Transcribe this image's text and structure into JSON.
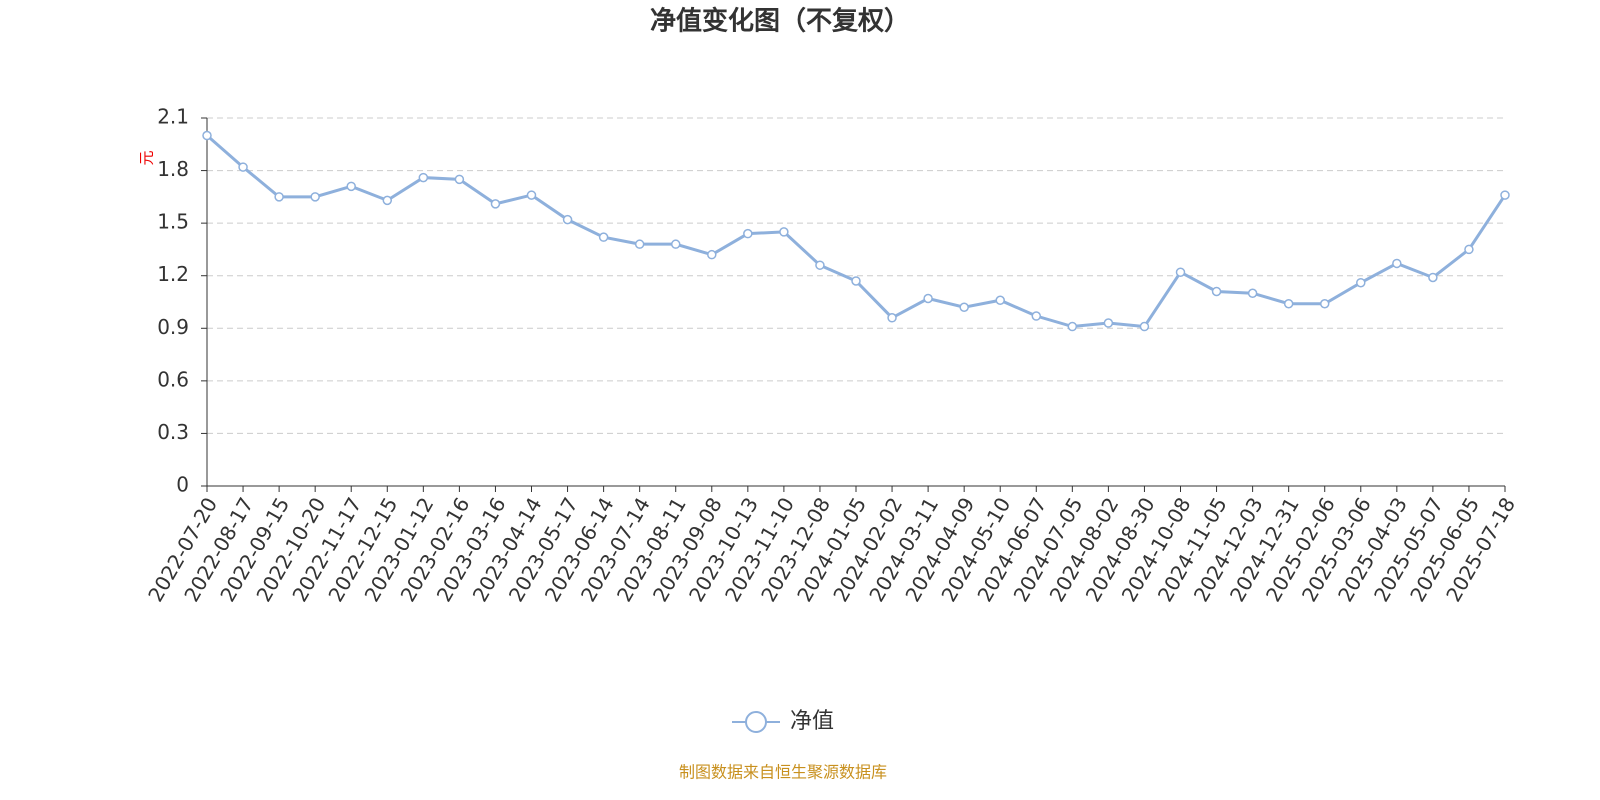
{
  "chart_data": {
    "type": "line",
    "title": "净值变化图（不复权）",
    "y_label": "元",
    "source": "制图数据来自恒生聚源数据库",
    "categories": [
      "2022-07-20",
      "2022-08-17",
      "2022-09-15",
      "2022-10-20",
      "2022-11-17",
      "2022-12-15",
      "2023-01-12",
      "2023-02-16",
      "2023-03-16",
      "2023-04-14",
      "2023-05-17",
      "2023-06-14",
      "2023-07-14",
      "2023-08-11",
      "2023-09-08",
      "2023-10-13",
      "2023-11-10",
      "2023-12-08",
      "2024-01-05",
      "2024-02-02",
      "2024-03-11",
      "2024-04-09",
      "2024-05-10",
      "2024-06-07",
      "2024-07-05",
      "2024-08-02",
      "2024-08-30",
      "2024-10-08",
      "2024-11-05",
      "2024-12-03",
      "2024-12-31",
      "2025-02-06",
      "2025-03-06",
      "2025-04-03",
      "2025-05-07",
      "2025-06-05",
      "2025-07-18"
    ],
    "series": [
      {
        "name": "净值",
        "color": "#8eb0dc",
        "values": [
          2.0,
          1.82,
          1.65,
          1.65,
          1.71,
          1.63,
          1.76,
          1.75,
          1.61,
          1.66,
          1.52,
          1.42,
          1.38,
          1.38,
          1.32,
          1.44,
          1.45,
          1.26,
          1.17,
          0.96,
          1.07,
          1.02,
          1.06,
          0.97,
          0.91,
          0.93,
          0.91,
          1.22,
          1.11,
          1.1,
          1.04,
          1.04,
          1.16,
          1.27,
          1.19,
          1.35,
          1.66
        ]
      }
    ],
    "ylim": [
      0,
      2.1
    ],
    "yticks": [
      0,
      0.3,
      0.6,
      0.9,
      1.2,
      1.5,
      1.8,
      2.1
    ],
    "grid": true,
    "legend": "bottom"
  }
}
